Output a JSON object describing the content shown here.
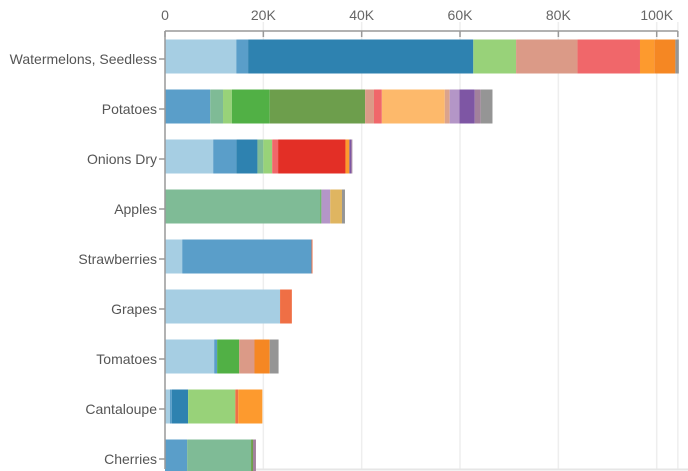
{
  "chart_data": {
    "type": "bar",
    "orientation": "horizontal",
    "stacked": true,
    "title": "",
    "xlabel": "",
    "ylabel": "",
    "xlim": [
      0,
      104300
    ],
    "grid": true,
    "x_ticks": [
      0,
      20000,
      40000,
      60000,
      80000,
      100000
    ],
    "x_tick_labels": [
      "0",
      "20K",
      "40K",
      "60K",
      "80K",
      "100K"
    ],
    "categories": [
      "Watermelons, Seedless",
      "Potatoes",
      "Onions Dry",
      "Apples",
      "Strawberries",
      "Grapes",
      "Tomatoes",
      "Cantaloupe",
      "Cherries"
    ],
    "bars": [
      {
        "category": "Watermelons, Seedless",
        "segments": [
          {
            "value": 14500,
            "color": "#a6cee3"
          },
          {
            "value": 2400,
            "color": "#5a9ec9"
          },
          {
            "value": 45800,
            "color": "#2e82b0"
          },
          {
            "value": 8700,
            "color": "#98d279"
          },
          {
            "value": 12500,
            "color": "#db9a87"
          },
          {
            "value": 12700,
            "color": "#f0676a"
          },
          {
            "value": 2900,
            "color": "#fd9a2e"
          },
          {
            "value": 4300,
            "color": "#f58723"
          },
          {
            "value": 700,
            "color": "#959595"
          }
        ]
      },
      {
        "category": "Potatoes",
        "segments": [
          {
            "value": 9200,
            "color": "#5a9ec9"
          },
          {
            "value": 2600,
            "color": "#7fbb96"
          },
          {
            "value": 1800,
            "color": "#98d279"
          },
          {
            "value": 7700,
            "color": "#51b045"
          },
          {
            "value": 19400,
            "color": "#6d9e4c"
          },
          {
            "value": 1800,
            "color": "#db9a87"
          },
          {
            "value": 1600,
            "color": "#f0676a"
          },
          {
            "value": 12800,
            "color": "#fdb96b"
          },
          {
            "value": 1000,
            "color": "#dba38c"
          },
          {
            "value": 2000,
            "color": "#b496c7"
          },
          {
            "value": 3100,
            "color": "#7e56a4"
          },
          {
            "value": 1200,
            "color": "#a2819c"
          },
          {
            "value": 2400,
            "color": "#959595"
          }
        ]
      },
      {
        "category": "Onions Dry",
        "segments": [
          {
            "value": 9800,
            "color": "#a6cee3"
          },
          {
            "value": 4700,
            "color": "#5a9ec9"
          },
          {
            "value": 4300,
            "color": "#2e82b0"
          },
          {
            "value": 1200,
            "color": "#7fbb96"
          },
          {
            "value": 1800,
            "color": "#98d279"
          },
          {
            "value": 1200,
            "color": "#f0676a"
          },
          {
            "value": 13700,
            "color": "#e32f26"
          },
          {
            "value": 800,
            "color": "#fd9a2e"
          },
          {
            "value": 400,
            "color": "#7e56a4"
          },
          {
            "value": 200,
            "color": "#a2819c"
          }
        ]
      },
      {
        "category": "Apples",
        "segments": [
          {
            "value": 31600,
            "color": "#7fbb96"
          },
          {
            "value": 200,
            "color": "#51b045"
          },
          {
            "value": 1800,
            "color": "#b496c7"
          },
          {
            "value": 2400,
            "color": "#dfb561"
          },
          {
            "value": 600,
            "color": "#959595"
          }
        ]
      },
      {
        "category": "Strawberries",
        "segments": [
          {
            "value": 3500,
            "color": "#a6cee3"
          },
          {
            "value": 26300,
            "color": "#5a9ec9"
          },
          {
            "value": 200,
            "color": "#ef6f45"
          }
        ]
      },
      {
        "category": "Grapes",
        "segments": [
          {
            "value": 23400,
            "color": "#a6cee3"
          },
          {
            "value": 2400,
            "color": "#ef6f45"
          }
        ]
      },
      {
        "category": "Tomatoes",
        "segments": [
          {
            "value": 10000,
            "color": "#a6cee3"
          },
          {
            "value": 600,
            "color": "#5a9ec9"
          },
          {
            "value": 4500,
            "color": "#51b045"
          },
          {
            "value": 3100,
            "color": "#db9a87"
          },
          {
            "value": 3100,
            "color": "#f58723"
          },
          {
            "value": 1800,
            "color": "#959595"
          }
        ]
      },
      {
        "category": "Cantaloupe",
        "segments": [
          {
            "value": 1000,
            "color": "#a6cee3"
          },
          {
            "value": 400,
            "color": "#5a9ec9"
          },
          {
            "value": 3300,
            "color": "#2e82b0"
          },
          {
            "value": 9600,
            "color": "#98d279"
          },
          {
            "value": 600,
            "color": "#ef6f45"
          },
          {
            "value": 4900,
            "color": "#fd9a2e"
          }
        ]
      },
      {
        "category": "Cherries",
        "segments": [
          {
            "value": 4500,
            "color": "#5a9ec9"
          },
          {
            "value": 13000,
            "color": "#7fbb96"
          },
          {
            "value": 400,
            "color": "#6d9e4c"
          },
          {
            "value": 600,
            "color": "#a2819c"
          }
        ]
      }
    ]
  },
  "colors": {
    "axis": "#999999",
    "grid": "#eeeeee",
    "background": "#ffffff"
  }
}
